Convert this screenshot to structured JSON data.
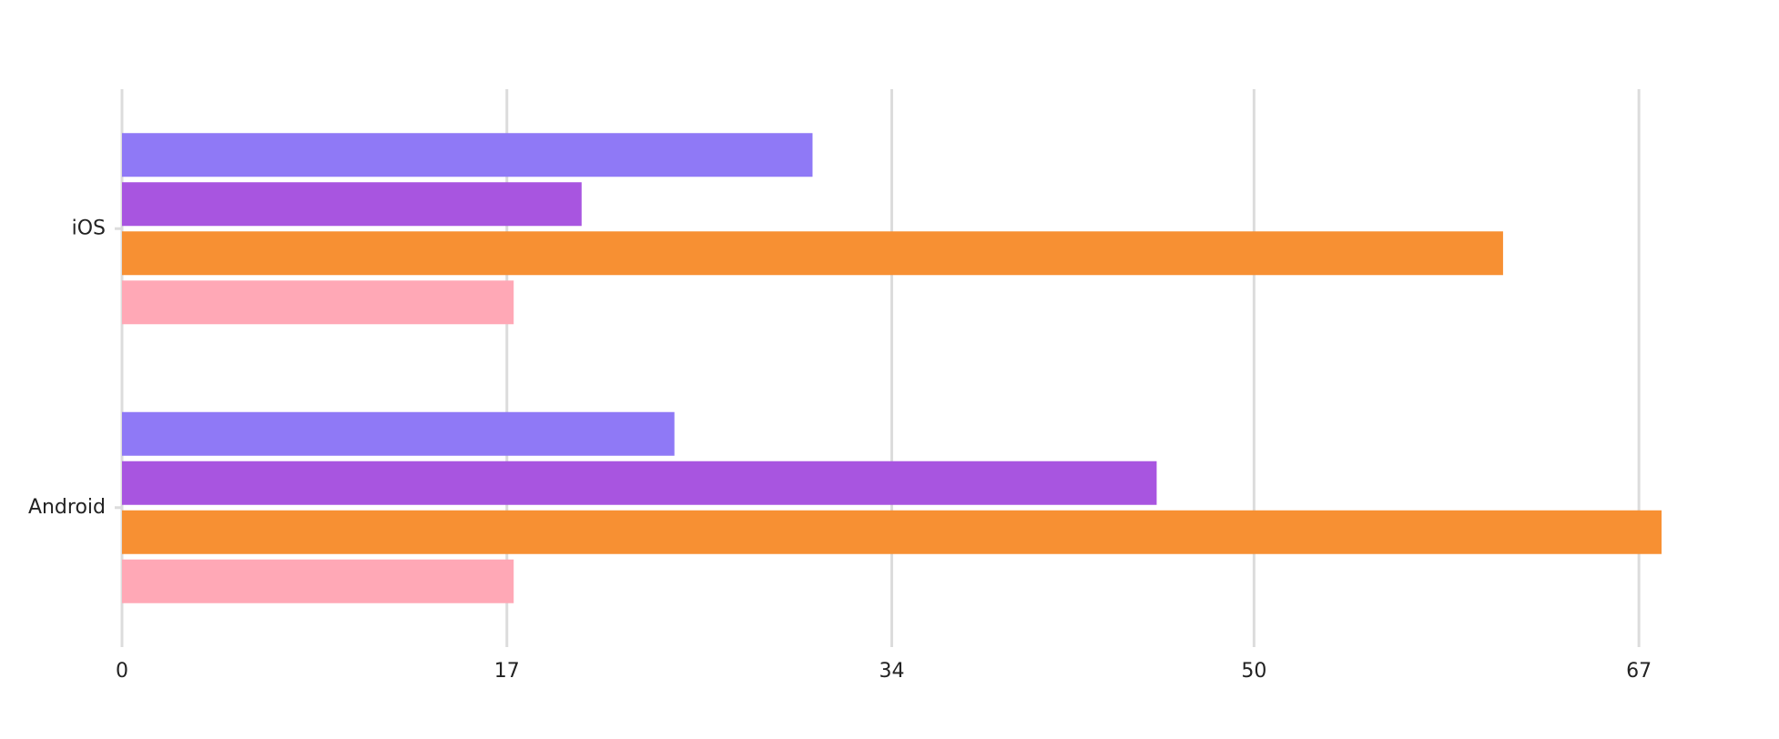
{
  "colors": {
    "grid": "#dcdcdc",
    "background": "#ffffff",
    "text": "#222222"
  },
  "chart_data": {
    "type": "bar",
    "orientation": "horizontal",
    "categories": [
      "iOS",
      "Android"
    ],
    "series": [
      {
        "color": "#8f79f6",
        "values": [
          30.5,
          24.4
        ]
      },
      {
        "color": "#a855e0",
        "values": [
          20.3,
          45.7
        ]
      },
      {
        "color": "#f79033",
        "values": [
          61.0,
          68.0
        ]
      },
      {
        "color": "#ffa8b6",
        "values": [
          17.3,
          17.3
        ]
      }
    ],
    "xticks": [
      0,
      17,
      34,
      50,
      67
    ],
    "xlim": [
      0,
      68
    ],
    "grid": true,
    "legend": "none"
  }
}
